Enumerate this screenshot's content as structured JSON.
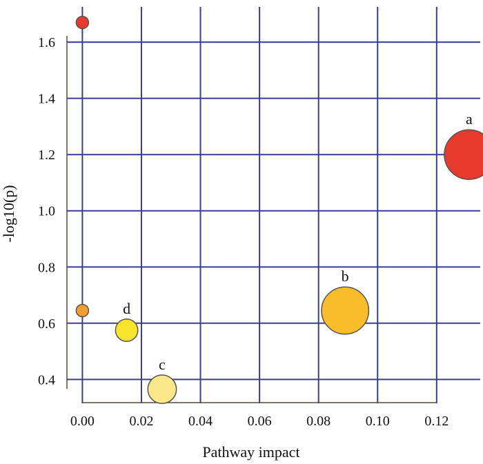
{
  "chart_data": {
    "type": "scatter",
    "xlabel": "Pathway impact",
    "ylabel": "-log10(p)",
    "xlim": [
      -0.005,
      0.135
    ],
    "ylim": [
      0.31,
      1.75
    ],
    "xticks": [
      "0.00",
      "0.02",
      "0.04",
      "0.06",
      "0.08",
      "0.10",
      "0.12"
    ],
    "yticks": [
      "0.4",
      "0.6",
      "0.8",
      "1.0",
      "1.2",
      "1.4",
      "1.6"
    ],
    "grid": true,
    "points": [
      {
        "label": "",
        "x": 0.0,
        "y": 1.67,
        "size": 1,
        "color": "#e53a2c"
      },
      {
        "label": "a",
        "x": 0.131,
        "y": 1.2,
        "size": 4,
        "color": "#e53a2c"
      },
      {
        "label": "b",
        "x": 0.089,
        "y": 0.645,
        "size": 3.8,
        "color": "#f9bd2b"
      },
      {
        "label": "",
        "x": 0.0,
        "y": 0.645,
        "size": 1,
        "color": "#f59d2e"
      },
      {
        "label": "d",
        "x": 0.015,
        "y": 0.575,
        "size": 1.8,
        "color": "#f8e42a"
      },
      {
        "label": "c",
        "x": 0.027,
        "y": 0.365,
        "size": 2.3,
        "color": "#fbe88a"
      }
    ]
  },
  "colors": {
    "grid": "#3a3a9a",
    "axis": "#5a4a3a",
    "marker_edge": "#555555"
  }
}
